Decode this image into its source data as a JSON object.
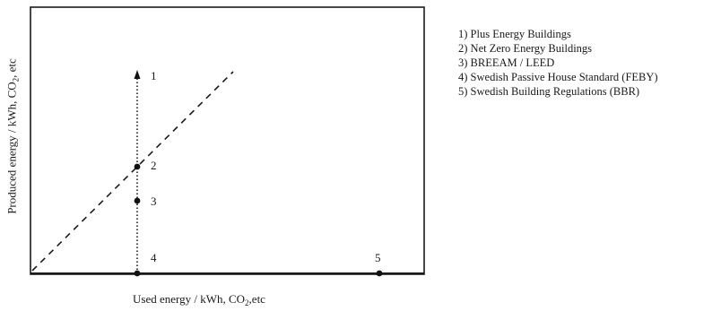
{
  "xlabel": {
    "pre": "Used energy / kWh, CO",
    "sub": "2",
    "post": ",etc"
  },
  "ylabel": {
    "pre": "Produced energy / kWh, CO",
    "sub": "2",
    "post": ", etc"
  },
  "points": [
    {
      "label": "1",
      "kind": "arrowhead"
    },
    {
      "label": "2",
      "kind": "dot"
    },
    {
      "label": "3",
      "kind": "dot"
    },
    {
      "label": "4",
      "kind": "dot"
    },
    {
      "label": "5",
      "kind": "dot"
    }
  ],
  "legend": [
    "1) Plus Energy Buildings",
    "2) Net Zero Energy Buildings",
    "3) BREEAM / LEED",
    "4) Swedish Passive House Standard (FEBY)",
    "5) Swedish Building Regulations (BBR)"
  ],
  "colors": {
    "ink": "#1a1a1a",
    "background": "#ffffff"
  }
}
